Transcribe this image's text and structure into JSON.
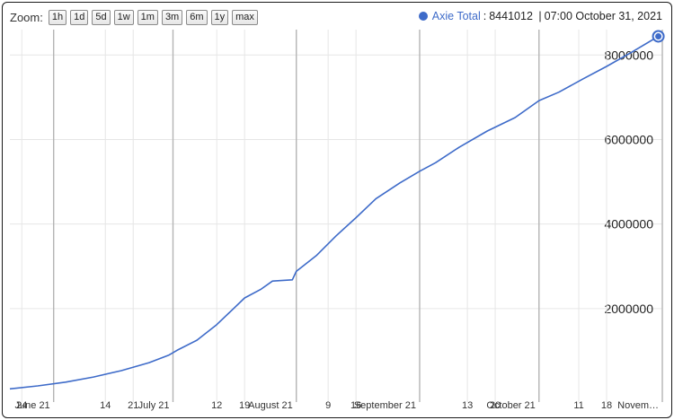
{
  "toolbar": {
    "zoom_label": "Zoom:",
    "buttons": [
      "1h",
      "1d",
      "5d",
      "1w",
      "1m",
      "3m",
      "6m",
      "1y",
      "max"
    ]
  },
  "legend": {
    "series_name": "Axie Total",
    "value": "8441012",
    "timestamp": "07:00 October 31, 2021",
    "color": "#3e6bc9"
  },
  "chart_data": {
    "type": "line",
    "title": "",
    "xlabel": "",
    "ylabel": "",
    "x_range": [
      "2021-05-21",
      "2021-11-01"
    ],
    "ylim": [
      0,
      8600000
    ],
    "grid": true,
    "legend_position": "top-right",
    "line_color": "#3e6bc9",
    "y_ticks": [
      {
        "value": 2000000,
        "label": "2000000"
      },
      {
        "value": 4000000,
        "label": "4000000"
      },
      {
        "value": 6000000,
        "label": "6000000"
      },
      {
        "value": 8000000,
        "label": "8000000"
      }
    ],
    "x_ticks": [
      {
        "date": "2021-05-24",
        "label": "24",
        "major": false
      },
      {
        "date": "2021-06-01",
        "label": "June 21",
        "major": true
      },
      {
        "date": "2021-06-14",
        "label": "14",
        "major": false
      },
      {
        "date": "2021-06-21",
        "label": "21",
        "major": false
      },
      {
        "date": "2021-07-01",
        "label": "July 21",
        "major": true
      },
      {
        "date": "2021-07-12",
        "label": "12",
        "major": false
      },
      {
        "date": "2021-07-19",
        "label": "19",
        "major": false
      },
      {
        "date": "2021-08-01",
        "label": "August 21",
        "major": true
      },
      {
        "date": "2021-08-09",
        "label": "9",
        "major": false
      },
      {
        "date": "2021-08-16",
        "label": "16",
        "major": false
      },
      {
        "date": "2021-09-01",
        "label": "September 21",
        "major": true
      },
      {
        "date": "2021-09-13",
        "label": "13",
        "major": false
      },
      {
        "date": "2021-09-20",
        "label": "20",
        "major": false
      },
      {
        "date": "2021-10-01",
        "label": "October 21",
        "major": true
      },
      {
        "date": "2021-10-11",
        "label": "11",
        "major": false
      },
      {
        "date": "2021-10-18",
        "label": "18",
        "major": false
      },
      {
        "date": "2021-11-01",
        "label": "Novem…",
        "major": true
      }
    ],
    "series": [
      {
        "name": "Axie Total",
        "points": [
          [
            "2021-05-21",
            100000
          ],
          [
            "2021-05-28",
            170000
          ],
          [
            "2021-06-04",
            260000
          ],
          [
            "2021-06-11",
            380000
          ],
          [
            "2021-06-18",
            530000
          ],
          [
            "2021-06-25",
            720000
          ],
          [
            "2021-06-30",
            900000
          ],
          [
            "2021-07-02",
            1010000
          ],
          [
            "2021-07-07",
            1250000
          ],
          [
            "2021-07-12",
            1620000
          ],
          [
            "2021-07-16",
            1980000
          ],
          [
            "2021-07-19",
            2250000
          ],
          [
            "2021-07-23",
            2450000
          ],
          [
            "2021-07-26",
            2650000
          ],
          [
            "2021-07-31",
            2680000
          ],
          [
            "2021-08-01",
            2880000
          ],
          [
            "2021-08-06",
            3250000
          ],
          [
            "2021-08-11",
            3720000
          ],
          [
            "2021-08-16",
            4150000
          ],
          [
            "2021-08-21",
            4600000
          ],
          [
            "2021-08-27",
            4970000
          ],
          [
            "2021-09-01",
            5250000
          ],
          [
            "2021-09-05",
            5450000
          ],
          [
            "2021-09-11",
            5820000
          ],
          [
            "2021-09-18",
            6200000
          ],
          [
            "2021-09-25",
            6520000
          ],
          [
            "2021-10-01",
            6920000
          ],
          [
            "2021-10-06",
            7120000
          ],
          [
            "2021-10-12",
            7430000
          ],
          [
            "2021-10-18",
            7730000
          ],
          [
            "2021-10-24",
            8050000
          ],
          [
            "2021-10-31",
            8441012
          ]
        ]
      }
    ]
  }
}
